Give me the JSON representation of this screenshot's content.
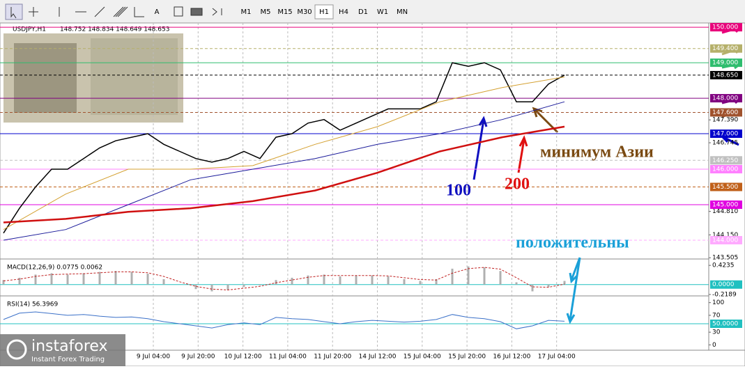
{
  "toolbar": {
    "text_tool": "A",
    "timeframes": [
      "M1",
      "M5",
      "M15",
      "M30",
      "H1",
      "H4",
      "D1",
      "W1",
      "MN"
    ],
    "active": 4
  },
  "time_axis": {
    "labels": [
      "9 Jul 04:00",
      "9 Jul 20:00",
      "10 Jul 12:00",
      "11 Jul 04:00",
      "11 Jul 20:00",
      "14 Jul 12:00",
      "15 Jul 04:00",
      "15 Jul 20:00",
      "16 Jul 12:00",
      "17 Jul 04:00"
    ]
  },
  "logo": {
    "name": "instaforex",
    "tagline": "Instant Forex Trading"
  },
  "chart_data": [
    {
      "type": "line",
      "title": "USDJPY,H1",
      "ohlc": "148.752 148.834 148.649 148.653",
      "ylim": [
        143.47,
        150.12
      ],
      "yticks": [
        {
          "value": 147.39,
          "label": "147.390"
        },
        {
          "value": 146.745,
          "label": "146.745"
        },
        {
          "value": 144.81,
          "label": "144.810"
        },
        {
          "value": 144.15,
          "label": "144.150"
        },
        {
          "value": 143.505,
          "label": "143.505"
        }
      ],
      "levels": [
        {
          "value": 150,
          "label": "150.000",
          "color": "#e8007a"
        },
        {
          "value": 149.4,
          "label": "149.400",
          "color": "#b5b06a"
        },
        {
          "value": 149,
          "label": "149.000",
          "color": "#2ebd6e"
        },
        {
          "value": 148.65,
          "label": "148.650",
          "color": "#000000"
        },
        {
          "value": 148,
          "label": "148.000",
          "color": "#800080"
        },
        {
          "value": 147.6,
          "label": "147.600",
          "color": "#a0522d"
        },
        {
          "value": 147,
          "label": "147.000",
          "color": "#0000cc"
        },
        {
          "value": 146.25,
          "label": "146.250",
          "color": "#c0c0c0"
        },
        {
          "value": 146,
          "label": "146.000",
          "color": "#ff80ff"
        },
        {
          "value": 145.5,
          "label": "145.500",
          "color": "#c0601a"
        },
        {
          "value": 145,
          "label": "145.000",
          "color": "#e000e0"
        },
        {
          "value": 144,
          "label": "144.000",
          "color": "#ffaaff"
        }
      ],
      "series": [
        {
          "name": "USDJPY",
          "color": "#000000",
          "values": [
            144.2,
            144.9,
            145.5,
            146.0,
            146.0,
            146.3,
            146.6,
            146.8,
            146.9,
            147.0,
            146.7,
            146.5,
            146.3,
            146.2,
            146.3,
            146.5,
            146.3,
            146.9,
            147.0,
            147.3,
            147.4,
            147.1,
            147.3,
            147.5,
            147.7,
            147.7,
            147.7,
            147.9,
            149.0,
            148.9,
            149.0,
            148.8,
            147.9,
            147.9,
            148.4,
            148.65
          ]
        },
        {
          "name": "MA50",
          "color": "#d4a030",
          "values": [
            144.3,
            145.3,
            146.0,
            146.0,
            146.1,
            146.7,
            147.2,
            147.9,
            148.3,
            148.6
          ]
        },
        {
          "name": "MA100",
          "color": "#1a1a9a",
          "values": [
            144.0,
            144.3,
            145.0,
            145.7,
            146.0,
            146.3,
            146.7,
            147.0,
            147.4,
            147.9
          ]
        },
        {
          "name": "MA200",
          "color": "#d01010",
          "values": [
            144.5,
            144.6,
            144.8,
            144.9,
            145.1,
            145.4,
            145.9,
            146.5,
            146.9,
            147.2
          ]
        }
      ],
      "annotations": [
        {
          "text": "минимум Азии",
          "color": "#7a4a12"
        },
        {
          "text": "100",
          "color": "#1010c0"
        },
        {
          "text": "200",
          "color": "#e01010"
        },
        {
          "text": "положительны",
          "color": "#1aa0d8"
        }
      ]
    },
    {
      "type": "histogram",
      "title": "MACD(12,26,9) 0.0775 0.0062",
      "ylim": [
        -0.235,
        0.518
      ],
      "yticks": [
        {
          "value": 0.4235,
          "label": "0.4235"
        },
        {
          "value": -0.2189,
          "label": "-0.2189"
        }
      ],
      "levels": [
        {
          "value": 0,
          "label": "0.0000",
          "color": "#20c0c0"
        }
      ],
      "series": [
        {
          "name": "MACD",
          "color": "#b0b0b0",
          "values": [
            0.1,
            0.15,
            0.22,
            0.25,
            0.22,
            0.25,
            0.28,
            0.3,
            0.28,
            0.24,
            0.12,
            0.0,
            -0.1,
            -0.15,
            -0.12,
            -0.05,
            -0.02,
            0.1,
            0.15,
            0.2,
            0.22,
            0.18,
            0.2,
            0.2,
            0.18,
            0.12,
            0.08,
            0.12,
            0.35,
            0.4,
            0.38,
            0.3,
            0.05,
            -0.15,
            -0.05,
            0.08
          ]
        },
        {
          "name": "Signal",
          "color": "#c02020",
          "values": [
            0.08,
            0.12,
            0.18,
            0.22,
            0.23,
            0.24,
            0.26,
            0.28,
            0.28,
            0.26,
            0.18,
            0.06,
            -0.04,
            -0.1,
            -0.12,
            -0.08,
            -0.04,
            0.04,
            0.1,
            0.16,
            0.2,
            0.2,
            0.2,
            0.2,
            0.19,
            0.15,
            0.11,
            0.1,
            0.25,
            0.35,
            0.38,
            0.34,
            0.15,
            -0.05,
            -0.06,
            0.01
          ]
        }
      ]
    },
    {
      "type": "line",
      "title": "RSI(14) 56.3969",
      "ylim": [
        -11,
        111
      ],
      "yticks": [
        100,
        70,
        30,
        0
      ],
      "levels": [
        {
          "value": 50,
          "label": "50.0000",
          "color": "#20c0c0"
        }
      ],
      "series": [
        {
          "name": "RSI",
          "color": "#3a70c8",
          "values": [
            60,
            75,
            78,
            74,
            70,
            72,
            68,
            65,
            66,
            62,
            55,
            50,
            45,
            40,
            48,
            52,
            48,
            65,
            62,
            60,
            55,
            50,
            55,
            58,
            56,
            54,
            56,
            60,
            72,
            65,
            62,
            55,
            38,
            45,
            58,
            56
          ]
        }
      ]
    }
  ]
}
